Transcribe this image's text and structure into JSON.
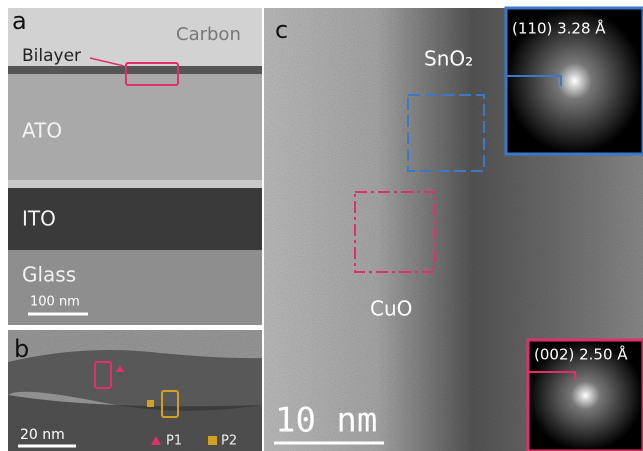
{
  "panel_a": {
    "label": "a",
    "carbon": "Carbon",
    "bilayer": "Bilayer",
    "layers": [
      "ATO",
      "ITO",
      "Glass"
    ],
    "scale_bar": "100 nm"
  },
  "panel_b": {
    "label": "b",
    "scale_bar": "20 nm",
    "legend": [
      "P1",
      "P2"
    ]
  },
  "panel_c": {
    "label": "c",
    "phase_top": "SnO₂",
    "phase_bottom": "CuO",
    "fft_top": "(110) 3.28 Å",
    "fft_bottom": "(002) 2.50 Å",
    "scale_bar": "10 nm"
  }
}
